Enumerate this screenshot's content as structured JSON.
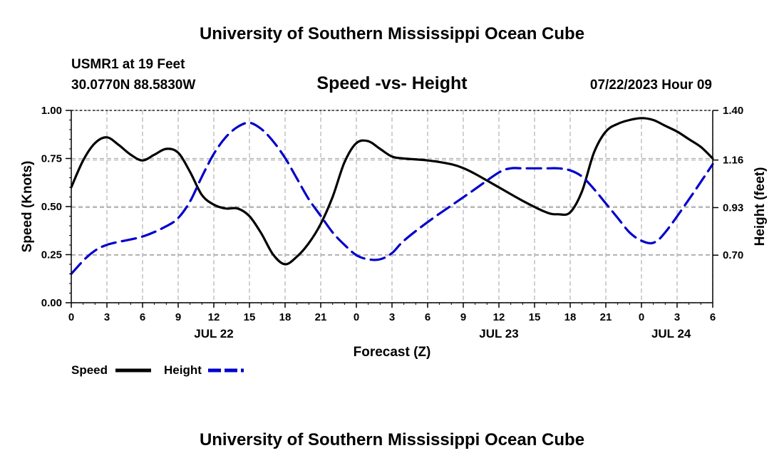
{
  "header": {
    "title": "University of Southern Mississippi Ocean Cube",
    "station": "USMR1 at 19 Feet",
    "location": "30.0770N  88.5830W",
    "chart_title": "Speed -vs- Height",
    "date": "07/22/2023 Hour 09"
  },
  "footer": {
    "title": "University of Southern Mississippi Ocean Cube"
  },
  "legend": {
    "speed_label": "Speed",
    "height_label": "Height"
  },
  "colors": {
    "speed": "#000000",
    "height": "#0000cc",
    "grid": "#b0b0b0"
  },
  "chart_data": {
    "type": "line",
    "title": "Speed -vs- Height",
    "xlabel": "Forecast (Z)",
    "ylabel": "Speed (Knots)",
    "y2label": "Height (feet)",
    "xlim": [
      0,
      54
    ],
    "ylim": [
      0,
      1
    ],
    "y2lim": [
      0.47,
      1.4
    ],
    "x_tick_values": [
      0,
      3,
      6,
      9,
      12,
      15,
      18,
      21,
      24,
      27,
      30,
      33,
      36,
      39,
      42,
      45,
      48,
      51,
      54
    ],
    "x_tick_labels": [
      "0",
      "3",
      "6",
      "9",
      "12",
      "15",
      "18",
      "21",
      "0",
      "3",
      "6",
      "9",
      "12",
      "15",
      "18",
      "21",
      "0",
      "3",
      "6"
    ],
    "date_labels": [
      {
        "x": 12,
        "label": "JUL 22"
      },
      {
        "x": 36,
        "label": "JUL 23"
      },
      {
        "x": 50.5,
        "label": "JUL 24"
      }
    ],
    "y_ticks": [
      0.0,
      0.25,
      0.5,
      0.75,
      1.0
    ],
    "y_tick_labels": [
      "0.00",
      "0.25",
      "0.50",
      "0.75",
      "1.00"
    ],
    "y2_ticks": [
      0.7,
      0.93,
      1.16,
      1.4
    ],
    "y2_tick_labels": [
      "0.70",
      "0.93",
      "1.16",
      "1.40"
    ],
    "grid": true,
    "series": [
      {
        "name": "Speed",
        "axis": "left",
        "style": "solid",
        "x": [
          0,
          1,
          2,
          3,
          4,
          5,
          6,
          7,
          8,
          9,
          10,
          11,
          12,
          13,
          14,
          15,
          16,
          17,
          18,
          19,
          20,
          21,
          22,
          23,
          24,
          25,
          26,
          27,
          28,
          30,
          32,
          33,
          34,
          36,
          38,
          40,
          41,
          42,
          43,
          44,
          45,
          46,
          47,
          48,
          49,
          50,
          51,
          52,
          53,
          54
        ],
        "values": [
          0.6,
          0.74,
          0.83,
          0.86,
          0.82,
          0.77,
          0.74,
          0.77,
          0.8,
          0.78,
          0.68,
          0.56,
          0.51,
          0.49,
          0.49,
          0.45,
          0.36,
          0.25,
          0.2,
          0.24,
          0.31,
          0.41,
          0.55,
          0.73,
          0.83,
          0.84,
          0.8,
          0.76,
          0.75,
          0.74,
          0.72,
          0.7,
          0.67,
          0.6,
          0.53,
          0.47,
          0.46,
          0.47,
          0.58,
          0.78,
          0.89,
          0.93,
          0.95,
          0.96,
          0.95,
          0.92,
          0.89,
          0.85,
          0.81,
          0.75
        ]
      },
      {
        "name": "Height",
        "axis": "right",
        "style": "dashed",
        "x": [
          0,
          1.5,
          3,
          6,
          8,
          9,
          10,
          11,
          12,
          13,
          14,
          15,
          16,
          17,
          18,
          19,
          20,
          21,
          22,
          23,
          24,
          25,
          26,
          27,
          28,
          30,
          32,
          34,
          36,
          37,
          38,
          40,
          41,
          42,
          43,
          44,
          45,
          46,
          47,
          48,
          49,
          50,
          52,
          54
        ],
        "values": [
          0.61,
          0.7,
          0.75,
          0.79,
          0.84,
          0.88,
          0.96,
          1.08,
          1.19,
          1.27,
          1.32,
          1.34,
          1.31,
          1.25,
          1.17,
          1.07,
          0.97,
          0.89,
          0.81,
          0.75,
          0.7,
          0.68,
          0.68,
          0.71,
          0.77,
          0.86,
          0.94,
          1.02,
          1.1,
          1.12,
          1.12,
          1.12,
          1.12,
          1.11,
          1.08,
          1.02,
          0.95,
          0.88,
          0.81,
          0.77,
          0.76,
          0.81,
          0.97,
          1.14
        ]
      }
    ]
  }
}
